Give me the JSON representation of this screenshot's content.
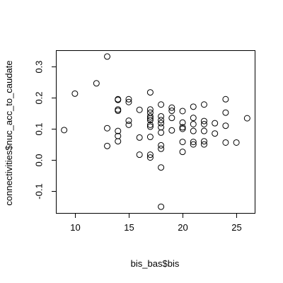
{
  "chart_data": {
    "type": "scatter",
    "title": "",
    "xlabel": "bis_bas$bis",
    "ylabel": "connectivities$nuc_acc_to_caudate",
    "xlim": [
      8.3,
      26.7
    ],
    "ylim": [
      -0.17,
      0.35
    ],
    "x_ticks": [
      10,
      15,
      20,
      25
    ],
    "y_ticks": [
      -0.1,
      0.0,
      0.1,
      0.2,
      0.3
    ],
    "x_tick_labels": [
      "10",
      "15",
      "20",
      "25"
    ],
    "y_tick_labels": [
      "-0.1",
      "0.0",
      "0.1",
      "0.2",
      "0.3"
    ],
    "grid": false,
    "legend": "none",
    "points": [
      {
        "x": 9,
        "y": 0.096
      },
      {
        "x": 10,
        "y": 0.213
      },
      {
        "x": 12,
        "y": 0.246
      },
      {
        "x": 13,
        "y": 0.332
      },
      {
        "x": 13,
        "y": 0.102
      },
      {
        "x": 13,
        "y": 0.045
      },
      {
        "x": 14,
        "y": 0.195
      },
      {
        "x": 14,
        "y": 0.193
      },
      {
        "x": 14,
        "y": 0.162
      },
      {
        "x": 14,
        "y": 0.158
      },
      {
        "x": 14,
        "y": 0.093
      },
      {
        "x": 14,
        "y": 0.077
      },
      {
        "x": 14,
        "y": 0.06
      },
      {
        "x": 15,
        "y": 0.195
      },
      {
        "x": 15,
        "y": 0.186
      },
      {
        "x": 15,
        "y": 0.126
      },
      {
        "x": 15,
        "y": 0.113
      },
      {
        "x": 16,
        "y": 0.161
      },
      {
        "x": 16,
        "y": 0.072
      },
      {
        "x": 16,
        "y": 0.017
      },
      {
        "x": 17,
        "y": 0.217
      },
      {
        "x": 17,
        "y": 0.162
      },
      {
        "x": 17,
        "y": 0.152
      },
      {
        "x": 17,
        "y": 0.14
      },
      {
        "x": 17,
        "y": 0.134
      },
      {
        "x": 17,
        "y": 0.128
      },
      {
        "x": 17,
        "y": 0.113
      },
      {
        "x": 17,
        "y": 0.107
      },
      {
        "x": 17,
        "y": 0.074
      },
      {
        "x": 17,
        "y": 0.017
      },
      {
        "x": 17,
        "y": 0.008
      },
      {
        "x": 18,
        "y": 0.178
      },
      {
        "x": 18,
        "y": 0.14
      },
      {
        "x": 18,
        "y": 0.128
      },
      {
        "x": 18,
        "y": 0.118
      },
      {
        "x": 18,
        "y": 0.105
      },
      {
        "x": 18,
        "y": 0.088
      },
      {
        "x": 18,
        "y": 0.047
      },
      {
        "x": 18,
        "y": 0.036
      },
      {
        "x": 18,
        "y": -0.024
      },
      {
        "x": 18,
        "y": -0.15
      },
      {
        "x": 19,
        "y": 0.168
      },
      {
        "x": 19,
        "y": 0.158
      },
      {
        "x": 19,
        "y": 0.135
      },
      {
        "x": 19,
        "y": 0.095
      },
      {
        "x": 20,
        "y": 0.157
      },
      {
        "x": 20,
        "y": 0.12
      },
      {
        "x": 20,
        "y": 0.105
      },
      {
        "x": 20,
        "y": 0.1
      },
      {
        "x": 20,
        "y": 0.058
      },
      {
        "x": 20,
        "y": 0.026
      },
      {
        "x": 21,
        "y": 0.171
      },
      {
        "x": 21,
        "y": 0.135
      },
      {
        "x": 21,
        "y": 0.115
      },
      {
        "x": 21,
        "y": 0.093
      },
      {
        "x": 21,
        "y": 0.058
      },
      {
        "x": 21,
        "y": 0.05
      },
      {
        "x": 22,
        "y": 0.178
      },
      {
        "x": 22,
        "y": 0.125
      },
      {
        "x": 22,
        "y": 0.115
      },
      {
        "x": 22,
        "y": 0.093
      },
      {
        "x": 22,
        "y": 0.06
      },
      {
        "x": 22,
        "y": 0.05
      },
      {
        "x": 23,
        "y": 0.118
      },
      {
        "x": 23,
        "y": 0.085
      },
      {
        "x": 24,
        "y": 0.195
      },
      {
        "x": 24,
        "y": 0.152
      },
      {
        "x": 24,
        "y": 0.11
      },
      {
        "x": 24,
        "y": 0.056
      },
      {
        "x": 25,
        "y": 0.056
      },
      {
        "x": 26,
        "y": 0.134
      }
    ]
  }
}
